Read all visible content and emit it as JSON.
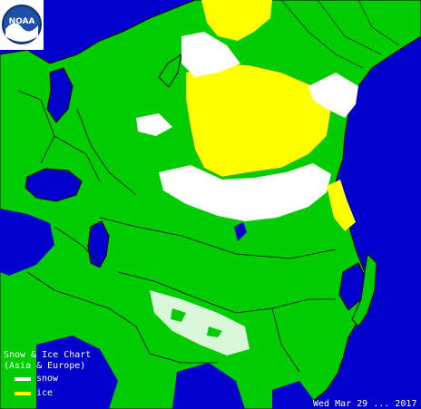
{
  "legend": {
    "title_line1": "Snow & Ice Chart",
    "title_line2": "(Asia & Europe)",
    "items": [
      {
        "label": "snow",
        "color": "#ffffff"
      },
      {
        "label": "ice",
        "color": "#ffff00"
      }
    ]
  },
  "timestamp": "Wed Mar 29 ... 2017",
  "colors": {
    "ocean": "#0000cc",
    "land": "#00cc00",
    "snow": "#ffffff",
    "ice": "#ffff00",
    "borders": "#000000"
  },
  "logo": {
    "text": "NOAA",
    "icon": "noaa-logo-icon"
  }
}
